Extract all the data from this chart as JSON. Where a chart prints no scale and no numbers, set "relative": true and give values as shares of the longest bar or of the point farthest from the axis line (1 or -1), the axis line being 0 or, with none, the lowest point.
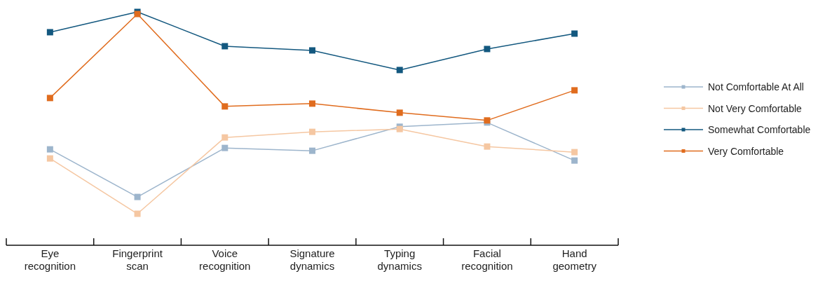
{
  "chart_data": {
    "type": "line",
    "relative": true,
    "categories": [
      "Eye recognition",
      "Fingerprint scan",
      "Voice recognition",
      "Signature dynamics",
      "Typing dynamics",
      "Facial recognition",
      "Hand geometry"
    ],
    "series": [
      {
        "name": "Not Comfortable At All",
        "color": "#9db5cc",
        "values": [
          0.411,
          0.207,
          0.417,
          0.405,
          0.508,
          0.526,
          0.363
        ]
      },
      {
        "name": "Not Very Comfortable",
        "color": "#f5c7a2",
        "values": [
          0.372,
          0.135,
          0.462,
          0.486,
          0.498,
          0.423,
          0.399
        ]
      },
      {
        "name": "Somewhat Comfortable",
        "color": "#13587f",
        "values": [
          0.913,
          1,
          0.853,
          0.835,
          0.751,
          0.841,
          0.907
        ]
      },
      {
        "name": "Very Comfortable",
        "color": "#e06c1e",
        "values": [
          0.631,
          0.991,
          0.595,
          0.607,
          0.568,
          0.535,
          0.664
        ]
      }
    ],
    "marker": "square",
    "legend": "right"
  }
}
